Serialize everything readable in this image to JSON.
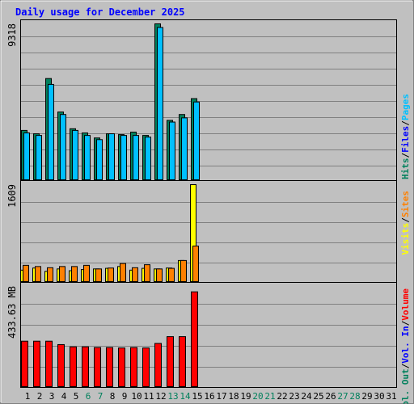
{
  "chart_data": [
    {
      "type": "bar",
      "title": "Daily usage for December 2025",
      "ylabel": "9318",
      "ylim": [
        0,
        9318
      ],
      "grid": true,
      "categories": [
        "1",
        "2",
        "3",
        "4",
        "5",
        "6",
        "7",
        "8",
        "9",
        "10",
        "11",
        "12",
        "13",
        "14",
        "15",
        "16",
        "17",
        "18",
        "19",
        "20",
        "21",
        "22",
        "23",
        "24",
        "25",
        "26",
        "27",
        "28",
        "29",
        "30",
        "31"
      ],
      "weekend_days": [
        6,
        7,
        13,
        14,
        20,
        21,
        27,
        28
      ],
      "series": [
        {
          "name": "Hits",
          "color": "#00805c",
          "values": [
            2950,
            2750,
            6050,
            4050,
            3050,
            2800,
            2500,
            2750,
            2700,
            2850,
            2650,
            9318,
            3550,
            3900,
            4850,
            0,
            0,
            0,
            0,
            0,
            0,
            0,
            0,
            0,
            0,
            0,
            0,
            0,
            0,
            0,
            0
          ]
        },
        {
          "name": "Files",
          "color": "#0000ff",
          "values": [
            0,
            0,
            0,
            0,
            0,
            0,
            0,
            0,
            0,
            0,
            0,
            0,
            0,
            0,
            0,
            0,
            0,
            0,
            0,
            0,
            0,
            0,
            0,
            0,
            0,
            0,
            0,
            0,
            0,
            0,
            0
          ]
        },
        {
          "name": "Pages",
          "color": "#00c0ff",
          "values": [
            2800,
            2650,
            5700,
            3900,
            2950,
            2650,
            2400,
            2750,
            2650,
            2650,
            2550,
            9100,
            3450,
            3700,
            4650,
            0,
            0,
            0,
            0,
            0,
            0,
            0,
            0,
            0,
            0,
            0,
            0,
            0,
            0,
            0,
            0
          ]
        }
      ]
    },
    {
      "type": "bar",
      "ylabel": "1609",
      "ylim": [
        0,
        1609
      ],
      "grid": true,
      "series": [
        {
          "name": "Visits",
          "color": "#ffff00",
          "values": [
            190,
            225,
            170,
            210,
            180,
            200,
            210,
            220,
            250,
            190,
            220,
            210,
            225,
            350,
            1609,
            0,
            0,
            0,
            0,
            0,
            0,
            0,
            0,
            0,
            0,
            0,
            0,
            0,
            0,
            0,
            0
          ]
        },
        {
          "name": "Sites",
          "color": "#ff8000",
          "values": [
            270,
            250,
            230,
            250,
            250,
            270,
            210,
            225,
            300,
            230,
            280,
            210,
            220,
            350,
            590,
            0,
            0,
            0,
            0,
            0,
            0,
            0,
            0,
            0,
            0,
            0,
            0,
            0,
            0,
            0,
            0
          ]
        }
      ]
    },
    {
      "type": "bar",
      "ylabel": "433.63 MB",
      "ylim": [
        0,
        433.63
      ],
      "grid": true,
      "series": [
        {
          "name": "Vol. Out",
          "color": "#00805c",
          "values": [
            0,
            0,
            0,
            0,
            0,
            0,
            0,
            0,
            0,
            0,
            0,
            0,
            0,
            0,
            0,
            0,
            0,
            0,
            0,
            0,
            0,
            0,
            0,
            0,
            0,
            0,
            0,
            0,
            0,
            0,
            0
          ]
        },
        {
          "name": "Vol. In",
          "color": "#0000ff",
          "values": [
            0,
            0,
            0,
            0,
            0,
            0,
            0,
            0,
            0,
            0,
            0,
            0,
            0,
            0,
            0,
            0,
            0,
            0,
            0,
            0,
            0,
            0,
            0,
            0,
            0,
            0,
            0,
            0,
            0,
            0,
            0
          ]
        },
        {
          "name": "Volume",
          "color": "#ff0000",
          "values": [
            200,
            200,
            200,
            185,
            175,
            175,
            172,
            172,
            170,
            172,
            170,
            190,
            220,
            220,
            417,
            0,
            0,
            0,
            0,
            0,
            0,
            0,
            0,
            0,
            0,
            0,
            0,
            0,
            0,
            0,
            0
          ]
        }
      ]
    }
  ],
  "colors": {
    "background": "#c0c0c0",
    "title_text": "#0000ff",
    "weekday_label": "#000000",
    "weekend_label": "#00805c",
    "grid": "#808080",
    "divider": "#000000"
  }
}
